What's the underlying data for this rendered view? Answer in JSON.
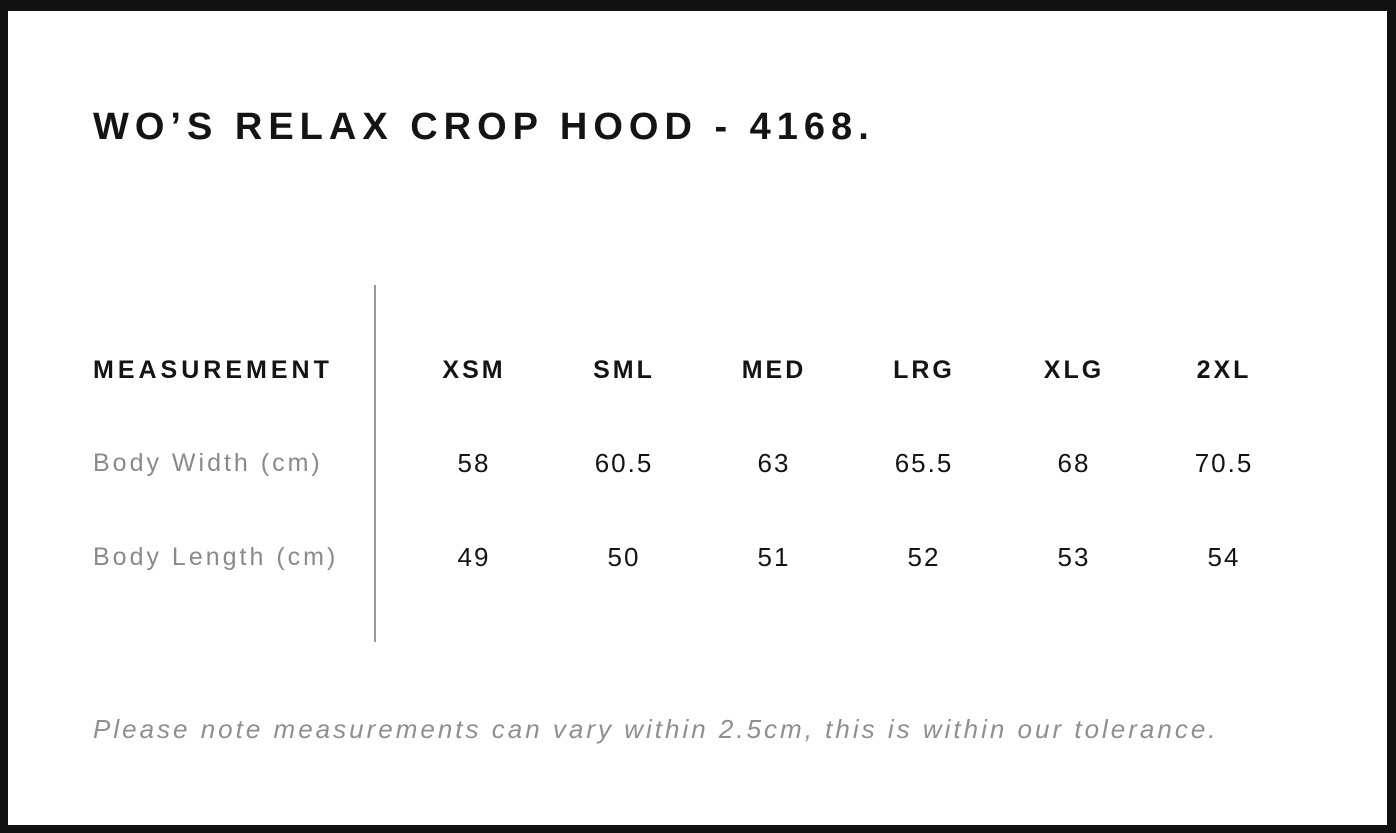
{
  "page": {
    "title": "WO’S RELAX CROP HOOD - 4168.",
    "note": "Please note measurements can vary within 2.5cm, this is within our tolerance."
  },
  "size_chart": {
    "header_label": "MEASUREMENT",
    "sizes": [
      "XSM",
      "SML",
      "MED",
      "LRG",
      "XLG",
      "2XL"
    ],
    "rows": [
      {
        "label": "Body Width (cm)",
        "values": [
          "58",
          "60.5",
          "63",
          "65.5",
          "68",
          "70.5"
        ]
      },
      {
        "label": "Body Length (cm)",
        "values": [
          "49",
          "50",
          "51",
          "52",
          "53",
          "54"
        ]
      }
    ],
    "tolerance_cm": "2.5"
  },
  "chart_data": {
    "type": "table",
    "title": "WO’S RELAX CROP HOOD - 4168.",
    "columns": [
      "MEASUREMENT",
      "XSM",
      "SML",
      "MED",
      "LRG",
      "XLG",
      "2XL"
    ],
    "rows": [
      [
        "Body Width (cm)",
        58,
        60.5,
        63,
        65.5,
        68,
        70.5
      ],
      [
        "Body Length (cm)",
        49,
        50,
        51,
        52,
        53,
        54
      ]
    ]
  },
  "colors": {
    "frame": "#111111",
    "background": "#ffffff",
    "text": "#141414",
    "muted_label": "#8a8a8a",
    "note_text": "#8f8f8f",
    "divider": "#9a9a9a"
  }
}
